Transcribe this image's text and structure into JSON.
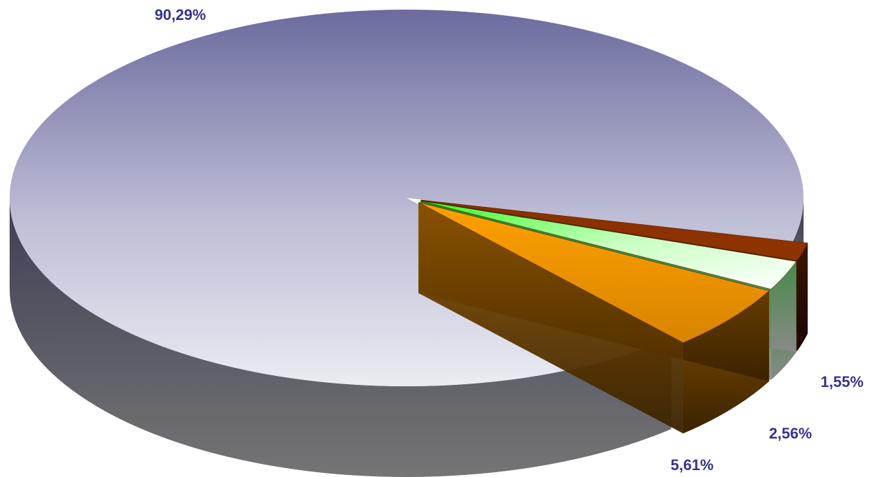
{
  "chart_data": {
    "type": "pie",
    "style": "3d-exploded",
    "slices": [
      {
        "value": 90.29,
        "label": "90,29%",
        "color": "#6b6b9e"
      },
      {
        "value": 5.61,
        "label": "5,61%",
        "color": "#f29a00"
      },
      {
        "value": 2.56,
        "label": "2,56%",
        "color": "#4cff3a"
      },
      {
        "value": 1.55,
        "label": "1,55%",
        "color": "#8a2e00"
      }
    ],
    "label_color": "#33338f",
    "legend": "none"
  }
}
